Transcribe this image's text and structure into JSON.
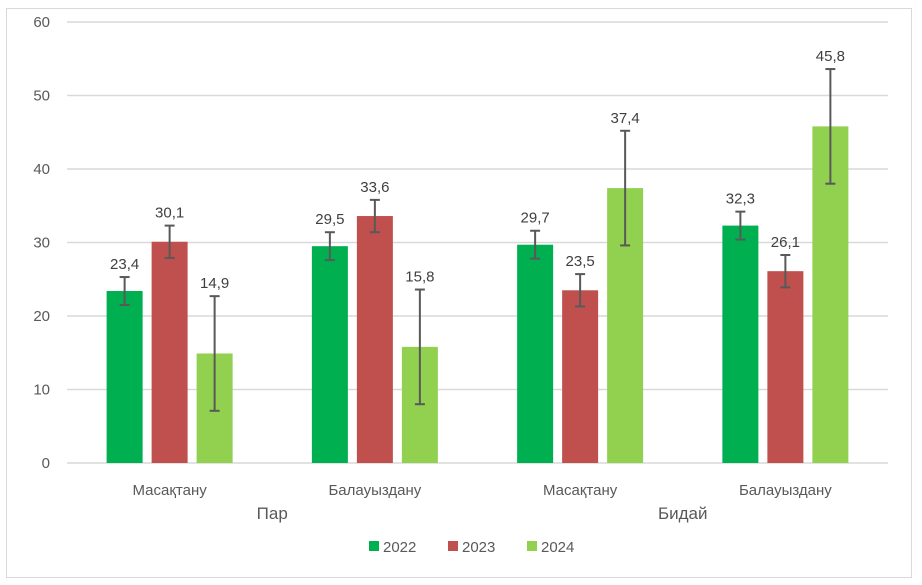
{
  "chart_data": {
    "type": "bar",
    "title": "",
    "xlabel": "",
    "ylabel": "",
    "ylim": [
      0,
      60
    ],
    "yticks": [
      0,
      10,
      20,
      30,
      40,
      50,
      60
    ],
    "grid": true,
    "legend_position": "bottom",
    "groups": [
      {
        "label": "Пар",
        "categories": [
          "Масақтану",
          "Балауыздану"
        ]
      },
      {
        "label": "Бидай",
        "categories": [
          "Масақтану",
          "Балауыздану"
        ]
      }
    ],
    "categories": [
      "Масақтану",
      "Балауыздану",
      "Масақтану",
      "Балауыздану"
    ],
    "series": [
      {
        "name": "2022",
        "color": "#00B050",
        "values": [
          23.4,
          29.5,
          29.7,
          32.3
        ],
        "labels": [
          "23,4",
          "29,5",
          "29,7",
          "32,3"
        ],
        "error": [
          1.9,
          1.9,
          1.9,
          1.9
        ]
      },
      {
        "name": "2023",
        "color": "#C0504D",
        "values": [
          30.1,
          33.6,
          23.5,
          26.1
        ],
        "labels": [
          "30,1",
          "33,6",
          "23,5",
          "26,1"
        ],
        "error": [
          2.2,
          2.2,
          2.2,
          2.2
        ]
      },
      {
        "name": "2024",
        "color": "#92D050",
        "values": [
          14.9,
          15.8,
          37.4,
          45.8
        ],
        "labels": [
          "14,9",
          "15,8",
          "37,4",
          "45,8"
        ],
        "error": [
          7.8,
          7.8,
          7.8,
          7.8
        ]
      }
    ]
  }
}
